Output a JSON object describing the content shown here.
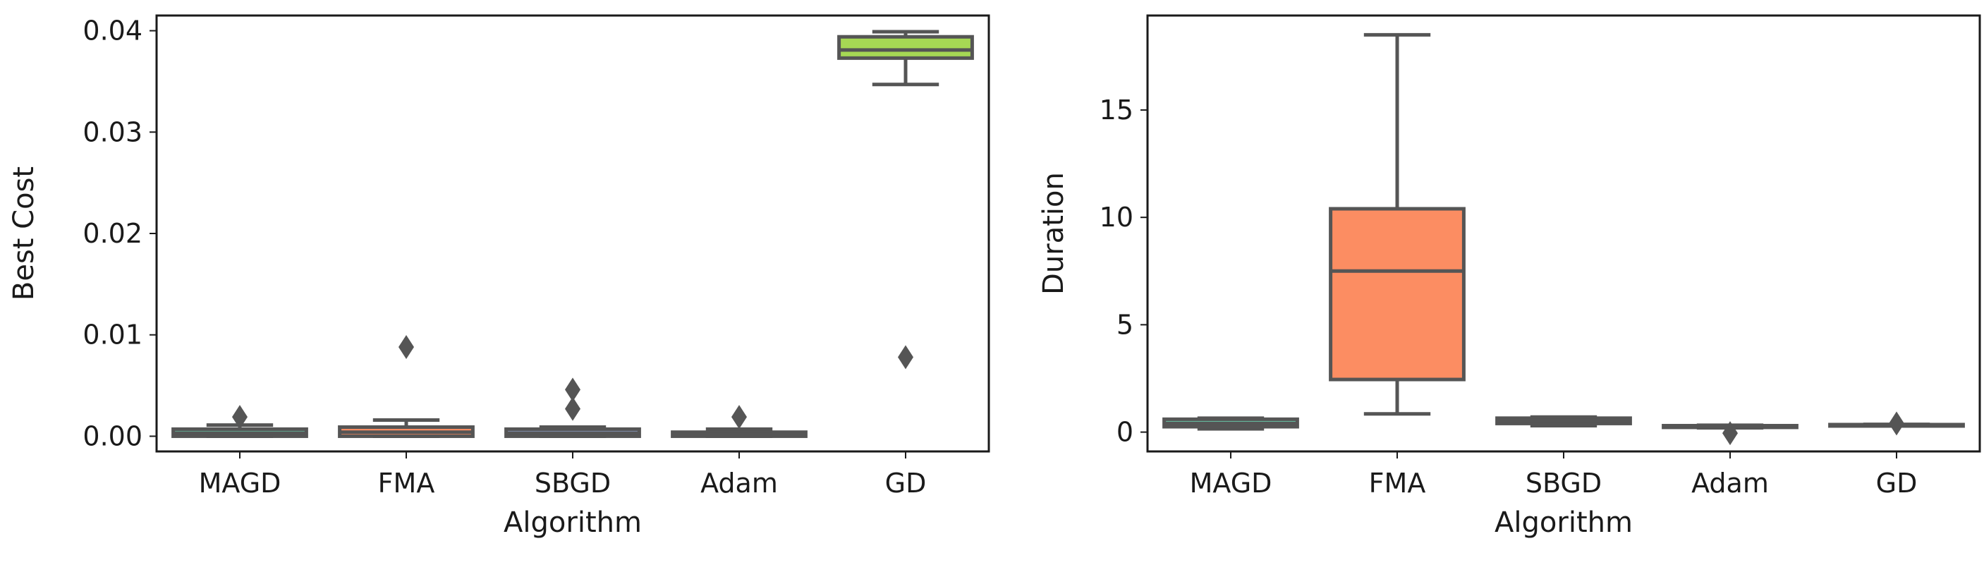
{
  "chart_data": [
    {
      "type": "box",
      "xlabel": "Algorithm",
      "ylabel": "Best Cost",
      "categories": [
        "MAGD",
        "FMA",
        "SBGD",
        "Adam",
        "GD"
      ],
      "ylim": [
        -0.0015,
        0.0415
      ],
      "yticks": [
        0.0,
        0.01,
        0.02,
        0.03,
        0.04
      ],
      "yticklabels": [
        "0.00",
        "0.01",
        "0.02",
        "0.03",
        "0.04"
      ],
      "boxes": [
        {
          "category": "MAGD",
          "color": "#66c2a5",
          "whisker_low": 0.0,
          "q1": 0.0,
          "median": 0.0003,
          "q3": 0.0007,
          "whisker_high": 0.0011,
          "outliers": [
            0.0019
          ]
        },
        {
          "category": "FMA",
          "color": "#fc8d62",
          "whisker_low": 0.0,
          "q1": 0.0,
          "median": 0.0004,
          "q3": 0.0009,
          "whisker_high": 0.0016,
          "outliers": [
            0.0088
          ]
        },
        {
          "category": "SBGD",
          "color": "#8da0cb",
          "whisker_low": 0.0,
          "q1": 0.0,
          "median": 0.0003,
          "q3": 0.0007,
          "whisker_high": 0.0009,
          "outliers": [
            0.0027,
            0.0046
          ]
        },
        {
          "category": "Adam",
          "color": "#e78ac3",
          "whisker_low": 0.0,
          "q1": 0.0,
          "median": 0.0002,
          "q3": 0.0004,
          "whisker_high": 0.0007,
          "outliers": [
            0.0019
          ]
        },
        {
          "category": "GD",
          "color": "#a6d854",
          "whisker_low": 0.0347,
          "q1": 0.0373,
          "median": 0.0381,
          "q3": 0.0394,
          "whisker_high": 0.0399,
          "outliers": [
            0.0078
          ]
        }
      ]
    },
    {
      "type": "box",
      "xlabel": "Algorithm",
      "ylabel": "Duration",
      "categories": [
        "MAGD",
        "FMA",
        "SBGD",
        "Adam",
        "GD"
      ],
      "ylim": [
        -0.9,
        19.4
      ],
      "yticks": [
        0,
        5,
        10,
        15
      ],
      "yticklabels": [
        "0",
        "5",
        "10",
        "15"
      ],
      "boxes": [
        {
          "category": "MAGD",
          "color": "#66c2a5",
          "whisker_low": 0.15,
          "q1": 0.25,
          "median": 0.4,
          "q3": 0.6,
          "whisker_high": 0.65,
          "outliers": []
        },
        {
          "category": "FMA",
          "color": "#fc8d62",
          "whisker_low": 0.85,
          "q1": 2.45,
          "median": 7.5,
          "q3": 10.4,
          "whisker_high": 18.5,
          "outliers": []
        },
        {
          "category": "SBGD",
          "color": "#8da0cb",
          "whisker_low": 0.3,
          "q1": 0.4,
          "median": 0.55,
          "q3": 0.65,
          "whisker_high": 0.7,
          "outliers": []
        },
        {
          "category": "Adam",
          "color": "#e78ac3",
          "whisker_low": 0.2,
          "q1": 0.22,
          "median": 0.25,
          "q3": 0.3,
          "whisker_high": 0.32,
          "outliers": [
            -0.05
          ]
        },
        {
          "category": "GD",
          "color": "#ffd92f",
          "whisker_low": 0.3,
          "q1": 0.31,
          "median": 0.33,
          "q3": 0.35,
          "whisker_high": 0.36,
          "outliers": [
            0.4
          ]
        }
      ]
    }
  ]
}
